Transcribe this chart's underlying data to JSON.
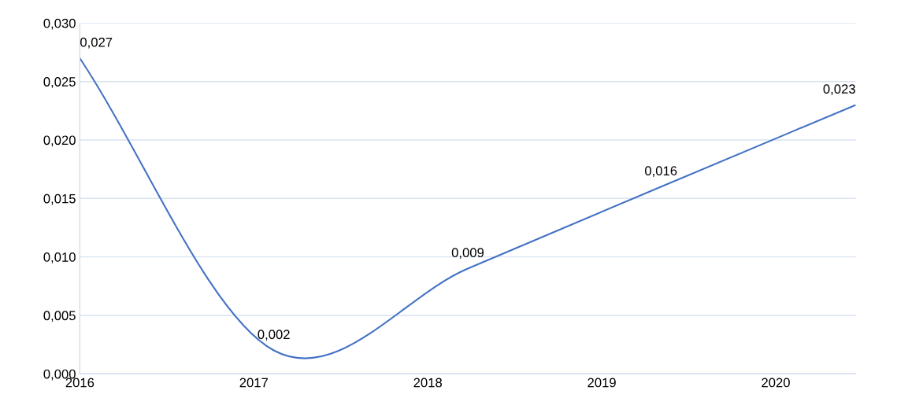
{
  "chart_data": {
    "type": "line",
    "x": [
      2016,
      2017.115,
      2018.23,
      2019.34,
      2020.46
    ],
    "series": [
      {
        "color": "#4472c4",
        "values": [
          0.027,
          0.002,
          0.009,
          0.016,
          0.023
        ],
        "value_labels": [
          "0,027",
          "0,002",
          "0,009",
          "0,016",
          "0,023"
        ]
      }
    ],
    "xlim": [
      2016,
      2020.46
    ],
    "xticks": [
      2016,
      2017,
      2018,
      2019,
      2020
    ],
    "ylim": [
      0,
      0.03
    ],
    "yticks": [
      {
        "value": 0,
        "label": "0,000"
      },
      {
        "value": 0.005,
        "label": "0,005"
      },
      {
        "value": 0.01,
        "label": "0,010"
      },
      {
        "value": 0.015,
        "label": "0,015"
      },
      {
        "value": 0.02,
        "label": "0,020"
      },
      {
        "value": 0.025,
        "label": "0,025"
      },
      {
        "value": 0.03,
        "label": "0,030"
      }
    ],
    "grid": "y",
    "marker": "none",
    "line_style": "solid"
  }
}
